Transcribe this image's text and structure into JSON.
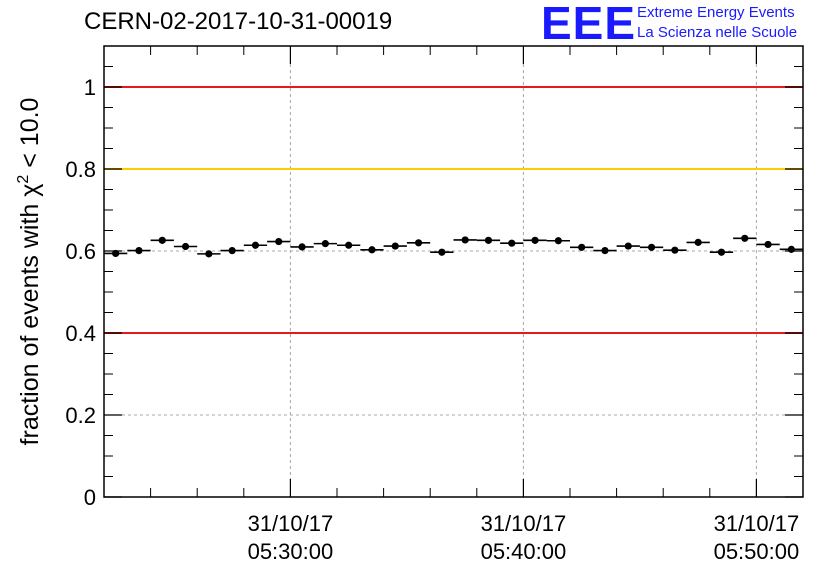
{
  "header": {
    "title": "CERN-02-2017-10-31-00019"
  },
  "logo": {
    "mark": "EEE",
    "line1": "Extreme Energy Events",
    "line2": "La Scienza nelle Scuole",
    "color": "#1a1aff"
  },
  "chart_data": {
    "type": "scatter",
    "title": "CERN-02-2017-10-31-00019",
    "xlabel": "",
    "ylabel": "fraction of events with χ² < 10.0",
    "ylabel_parts": {
      "prefix": "fraction of events with ",
      "symbol": "χ",
      "sup": "2",
      "suffix": " < 10.0"
    },
    "ylim": [
      0,
      1.1
    ],
    "yticks": [
      0,
      0.2,
      0.4,
      0.6,
      0.8,
      1
    ],
    "ytick_labels": [
      "0",
      "0.2",
      "0.4",
      "0.6",
      "0.8",
      "1"
    ],
    "xlim_minutes": [
      22,
      52
    ],
    "xticks_minutes": [
      30,
      40,
      50
    ],
    "xtick_labels": [
      {
        "date": "31/10/17",
        "time": "05:30:00"
      },
      {
        "date": "31/10/17",
        "time": "05:40:00"
      },
      {
        "date": "31/10/17",
        "time": "05:50:00"
      }
    ],
    "x_time_base": "31/10/17 05:00:00",
    "grid": true,
    "reference_lines": [
      {
        "y": 1.0,
        "color": "#e8191a"
      },
      {
        "y": 0.8,
        "color": "#ffcc00"
      },
      {
        "y": 0.4,
        "color": "#e8191a"
      }
    ],
    "series": [
      {
        "x_minutes": [
          22.5,
          23.5,
          24.5,
          25.5,
          26.5,
          27.5,
          28.5,
          29.5,
          30.5,
          31.5,
          32.5,
          33.5,
          34.5,
          35.5,
          36.5,
          37.5,
          38.5,
          39.5,
          40.5,
          41.5,
          42.5,
          43.5,
          44.5,
          45.5,
          46.5,
          47.5,
          48.5,
          49.5,
          50.5,
          51.5
        ],
        "values": [
          0.594,
          0.601,
          0.626,
          0.611,
          0.593,
          0.601,
          0.614,
          0.623,
          0.61,
          0.618,
          0.614,
          0.603,
          0.612,
          0.62,
          0.597,
          0.627,
          0.626,
          0.619,
          0.626,
          0.625,
          0.609,
          0.601,
          0.612,
          0.609,
          0.602,
          0.621,
          0.597,
          0.631,
          0.616,
          0.604
        ],
        "errors": [
          0.008,
          0.008,
          0.008,
          0.008,
          0.008,
          0.008,
          0.008,
          0.008,
          0.008,
          0.008,
          0.008,
          0.008,
          0.008,
          0.008,
          0.008,
          0.008,
          0.008,
          0.008,
          0.008,
          0.008,
          0.008,
          0.008,
          0.008,
          0.008,
          0.008,
          0.008,
          0.008,
          0.008,
          0.008,
          0.008
        ]
      }
    ]
  }
}
